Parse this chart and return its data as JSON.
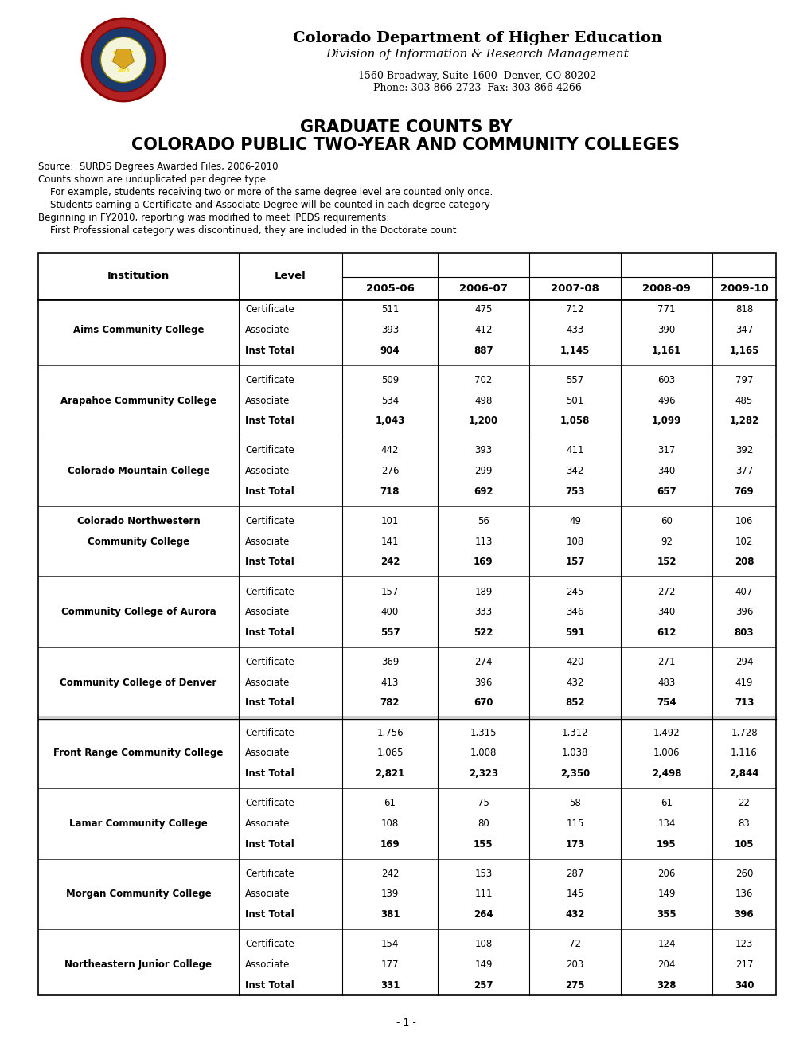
{
  "title_line1": "GRADUATE COUNTS BY",
  "title_line2": "COLORADO PUBLIC TWO-YEAR AND COMMUNITY COLLEGES",
  "header_org": "Colorado Department of Higher Education",
  "header_div": "Division of Information & Research Management",
  "header_addr": "1560 Broadway, Suite 1600  Denver, CO 80202",
  "header_phone": "Phone: 303-866-2723  Fax: 303-866-4266",
  "source_lines": [
    "Source:  SURDS Degrees Awarded Files, 2006-2010",
    "Counts shown are unduplicated per degree type.",
    "    For example, students receiving two or more of the same degree level are counted only once.",
    "    Students earning a Certificate and Associate Degree will be counted in each degree category",
    "Beginning in FY2010, reporting was modified to meet IPEDS requirements:",
    "    First Professional category was discontinued, they are included in the Doctorate count"
  ],
  "col_headers": [
    "Institution",
    "Level",
    "2005-06",
    "2006-07",
    "2007-08",
    "2008-09",
    "2009-10"
  ],
  "institutions": [
    {
      "name": "Aims Community College",
      "name2": "",
      "rows": [
        {
          "level": "Certificate",
          "vals": [
            511,
            475,
            712,
            771,
            818
          ]
        },
        {
          "level": "Associate",
          "vals": [
            393,
            412,
            433,
            390,
            347
          ]
        },
        {
          "level": "Inst Total",
          "vals": [
            904,
            887,
            1145,
            1161,
            1165
          ]
        }
      ]
    },
    {
      "name": "Arapahoe Community College",
      "name2": "",
      "rows": [
        {
          "level": "Certificate",
          "vals": [
            509,
            702,
            557,
            603,
            797
          ]
        },
        {
          "level": "Associate",
          "vals": [
            534,
            498,
            501,
            496,
            485
          ]
        },
        {
          "level": "Inst Total",
          "vals": [
            1043,
            1200,
            1058,
            1099,
            1282
          ]
        }
      ]
    },
    {
      "name": "Colorado Mountain College",
      "name2": "",
      "rows": [
        {
          "level": "Certificate",
          "vals": [
            442,
            393,
            411,
            317,
            392
          ]
        },
        {
          "level": "Associate",
          "vals": [
            276,
            299,
            342,
            340,
            377
          ]
        },
        {
          "level": "Inst Total",
          "vals": [
            718,
            692,
            753,
            657,
            769
          ]
        }
      ]
    },
    {
      "name": "Colorado Northwestern",
      "name2": "Community College",
      "rows": [
        {
          "level": "Certificate",
          "vals": [
            101,
            56,
            49,
            60,
            106
          ]
        },
        {
          "level": "Associate",
          "vals": [
            141,
            113,
            108,
            92,
            102
          ]
        },
        {
          "level": "Inst Total",
          "vals": [
            242,
            169,
            157,
            152,
            208
          ]
        }
      ]
    },
    {
      "name": "Community College of Aurora",
      "name2": "",
      "rows": [
        {
          "level": "Certificate",
          "vals": [
            157,
            189,
            245,
            272,
            407
          ]
        },
        {
          "level": "Associate",
          "vals": [
            400,
            333,
            346,
            340,
            396
          ]
        },
        {
          "level": "Inst Total",
          "vals": [
            557,
            522,
            591,
            612,
            803
          ]
        }
      ]
    },
    {
      "name": "Community College of Denver",
      "name2": "",
      "rows": [
        {
          "level": "Certificate",
          "vals": [
            369,
            274,
            420,
            271,
            294
          ]
        },
        {
          "level": "Associate",
          "vals": [
            413,
            396,
            432,
            483,
            419
          ]
        },
        {
          "level": "Inst Total",
          "vals": [
            782,
            670,
            852,
            754,
            713
          ]
        }
      ]
    },
    {
      "name": "Front Range Community College",
      "name2": "",
      "rows": [
        {
          "level": "Certificate",
          "vals": [
            1756,
            1315,
            1312,
            1492,
            1728
          ]
        },
        {
          "level": "Associate",
          "vals": [
            1065,
            1008,
            1038,
            1006,
            1116
          ]
        },
        {
          "level": "Inst Total",
          "vals": [
            2821,
            2323,
            2350,
            2498,
            2844
          ]
        }
      ]
    },
    {
      "name": "Lamar Community College",
      "name2": "",
      "rows": [
        {
          "level": "Certificate",
          "vals": [
            61,
            75,
            58,
            61,
            22
          ]
        },
        {
          "level": "Associate",
          "vals": [
            108,
            80,
            115,
            134,
            83
          ]
        },
        {
          "level": "Inst Total",
          "vals": [
            169,
            155,
            173,
            195,
            105
          ]
        }
      ]
    },
    {
      "name": "Morgan Community College",
      "name2": "",
      "rows": [
        {
          "level": "Certificate",
          "vals": [
            242,
            153,
            287,
            206,
            260
          ]
        },
        {
          "level": "Associate",
          "vals": [
            139,
            111,
            145,
            149,
            136
          ]
        },
        {
          "level": "Inst Total",
          "vals": [
            381,
            264,
            432,
            355,
            396
          ]
        }
      ]
    },
    {
      "name": "Northeastern Junior College",
      "name2": "",
      "rows": [
        {
          "level": "Certificate",
          "vals": [
            154,
            108,
            72,
            124,
            123
          ]
        },
        {
          "level": "Associate",
          "vals": [
            177,
            149,
            203,
            204,
            217
          ]
        },
        {
          "level": "Inst Total",
          "vals": [
            331,
            257,
            275,
            328,
            340
          ]
        }
      ]
    }
  ],
  "page_num": "- 1 -",
  "bg_color": "#ffffff",
  "text_color": "#000000"
}
